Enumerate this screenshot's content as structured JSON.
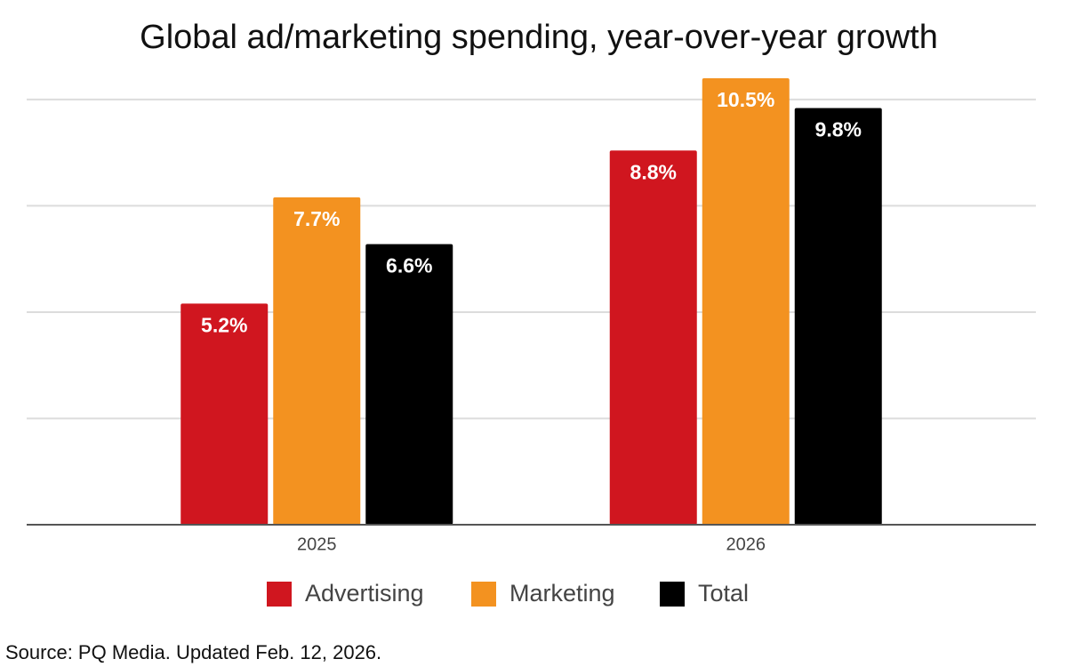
{
  "chart_data": {
    "type": "bar",
    "title": "Global ad/marketing spending, year-over-year growth",
    "categories": [
      "2025",
      "2026"
    ],
    "series": [
      {
        "name": "Advertising",
        "color": "#d0161f",
        "values": [
          5.2,
          8.8
        ],
        "value_labels": [
          "5.2%",
          "8.8%"
        ]
      },
      {
        "name": "Marketing",
        "color": "#f39220",
        "values": [
          7.7,
          10.5
        ],
        "value_labels": [
          "7.7%",
          "10.5%"
        ]
      },
      {
        "name": "Total",
        "color": "#000000",
        "values": [
          6.6,
          9.8
        ],
        "value_labels": [
          "6.6%",
          "9.8%"
        ]
      }
    ],
    "ylim": [
      0,
      10.5
    ],
    "yticks": [
      0,
      2.5,
      5,
      7.5,
      10
    ],
    "grid": true,
    "legend": "bottom",
    "source": "Source: PQ Media. Updated Feb. 12, 2026."
  }
}
